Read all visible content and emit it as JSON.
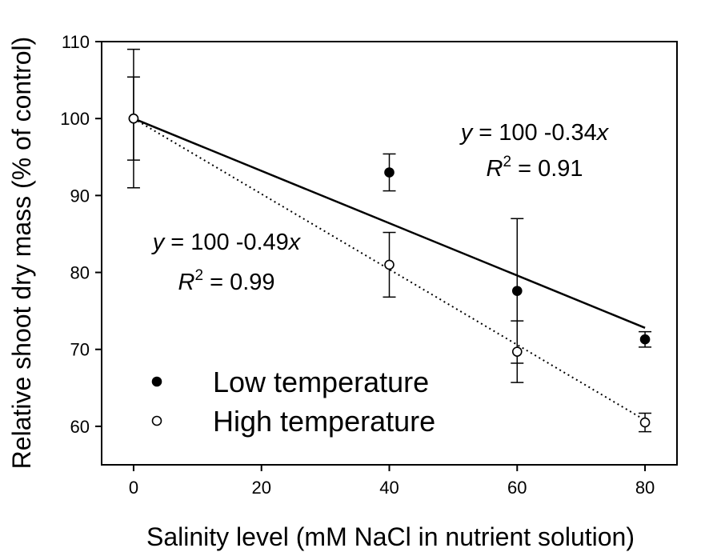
{
  "chart_data": {
    "type": "scatter",
    "xlabel": "Salinity level (mM NaCl in nutrient solution)",
    "ylabel": "Relative shoot dry mass (% of control)",
    "xlim": [
      -5,
      85
    ],
    "ylim": [
      55,
      110
    ],
    "xticks": [
      0,
      20,
      40,
      60,
      80
    ],
    "yticks": [
      60,
      70,
      80,
      90,
      100,
      110
    ],
    "grid": false,
    "legend_position": "bottom-left",
    "series": [
      {
        "name": "Low temperature",
        "marker": "filled-circle",
        "color": "#000000",
        "x": [
          0,
          40,
          60,
          80
        ],
        "y": [
          100,
          93,
          77.6,
          71.3
        ],
        "err": [
          5.4,
          2.4,
          9.4,
          1.0
        ],
        "fit": {
          "slope": -0.34,
          "intercept": 100,
          "style": "solid",
          "equation": {
            "y_part": "y",
            "mid": " = 100 -0.34",
            "x_part": "x"
          },
          "r2": {
            "r": "R",
            "sup": "2",
            "rest": " = 0.91"
          }
        }
      },
      {
        "name": "High temperature",
        "marker": "open-circle",
        "color": "#000000",
        "x": [
          0,
          40,
          60,
          80
        ],
        "y": [
          100,
          81,
          69.7,
          60.5
        ],
        "err": [
          9.0,
          4.2,
          4.0,
          1.2
        ],
        "fit": {
          "slope": -0.49,
          "intercept": 100,
          "style": "dotted",
          "equation": {
            "y_part": "y",
            "mid": " = 100 -0.49",
            "x_part": "x"
          },
          "r2": {
            "r": "R",
            "sup": "2",
            "rest": " = 0.99"
          }
        }
      }
    ]
  }
}
